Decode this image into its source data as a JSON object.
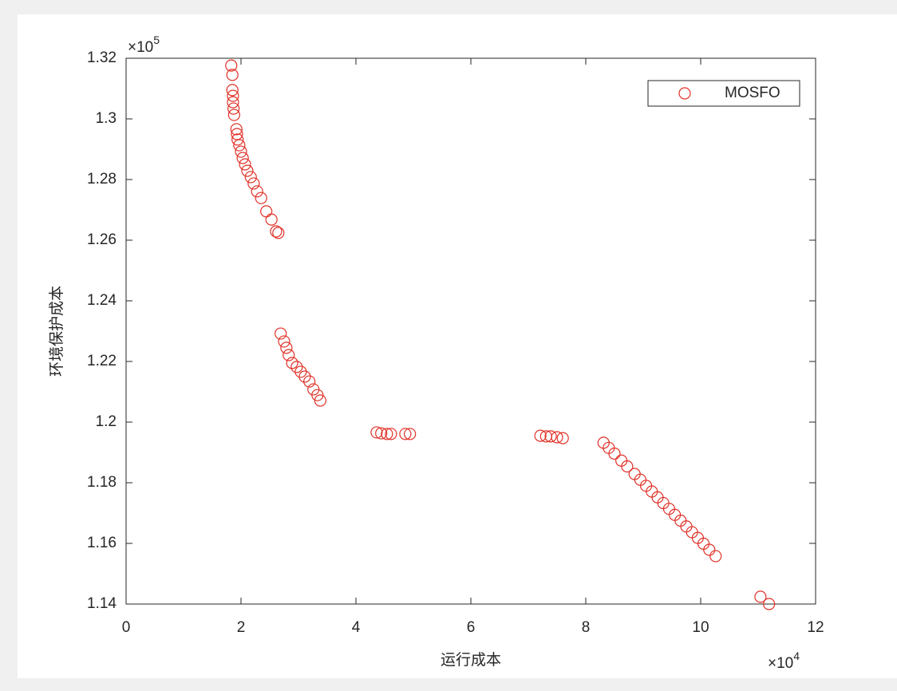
{
  "chart_data": {
    "type": "scatter",
    "x_label": "运行成本",
    "y_label": "环境保护成本",
    "x_multiplier": {
      "base": "×10",
      "exponent": "4"
    },
    "y_multiplier": {
      "base": "×10",
      "exponent": "5"
    },
    "xlim": [
      0,
      12
    ],
    "xticks": [
      0,
      2,
      4,
      6,
      8,
      10,
      12
    ],
    "ylim": [
      1.14,
      1.32
    ],
    "yticks": [
      1.14,
      1.16,
      1.18,
      1.2,
      1.22,
      1.24,
      1.26,
      1.28,
      1.3,
      1.32
    ],
    "legend": "upper right",
    "grid": false,
    "marker": "open-circle",
    "x": [
      1.83,
      1.85,
      1.85,
      1.86,
      1.86,
      1.87,
      1.88,
      1.92,
      1.93,
      1.94,
      1.97,
      2.0,
      2.03,
      2.07,
      2.11,
      2.17,
      2.22,
      2.28,
      2.35,
      2.44,
      2.53,
      2.61,
      2.65,
      2.69,
      2.75,
      2.79,
      2.83,
      2.89,
      2.97,
      3.04,
      3.11,
      3.19,
      3.26,
      3.33,
      3.38,
      4.36,
      4.44,
      4.54,
      4.61,
      4.86,
      4.94,
      7.21,
      7.31,
      7.39,
      7.5,
      7.6,
      8.31,
      8.4,
      8.5,
      8.62,
      8.72,
      8.85,
      8.95,
      9.05,
      9.15,
      9.25,
      9.35,
      9.45,
      9.55,
      9.65,
      9.75,
      9.85,
      9.95,
      10.05,
      10.15,
      10.26,
      11.04,
      11.19
    ],
    "series": [
      {
        "name": "MOSFO",
        "color": "#e03127",
        "values": [
          1.3176,
          1.3145,
          1.3095,
          1.3076,
          1.3055,
          1.3034,
          1.3013,
          1.2966,
          1.295,
          1.2932,
          1.2913,
          1.2892,
          1.2871,
          1.285,
          1.2829,
          1.2808,
          1.2787,
          1.2761,
          1.2739,
          1.2695,
          1.2668,
          1.2629,
          1.2624,
          1.2292,
          1.2266,
          1.2245,
          1.2221,
          1.2195,
          1.2182,
          1.2166,
          1.215,
          1.2134,
          1.2108,
          1.2089,
          1.2071,
          1.1966,
          1.1963,
          1.1961,
          1.1961,
          1.1961,
          1.1961,
          1.1955,
          1.1953,
          1.1953,
          1.195,
          1.1947,
          1.1932,
          1.1915,
          1.1896,
          1.1873,
          1.1854,
          1.1829,
          1.181,
          1.179,
          1.1771,
          1.1752,
          1.1733,
          1.1714,
          1.1694,
          1.1675,
          1.1656,
          1.1637,
          1.1618,
          1.1599,
          1.1579,
          1.1558,
          1.1424,
          1.14
        ]
      }
    ]
  }
}
